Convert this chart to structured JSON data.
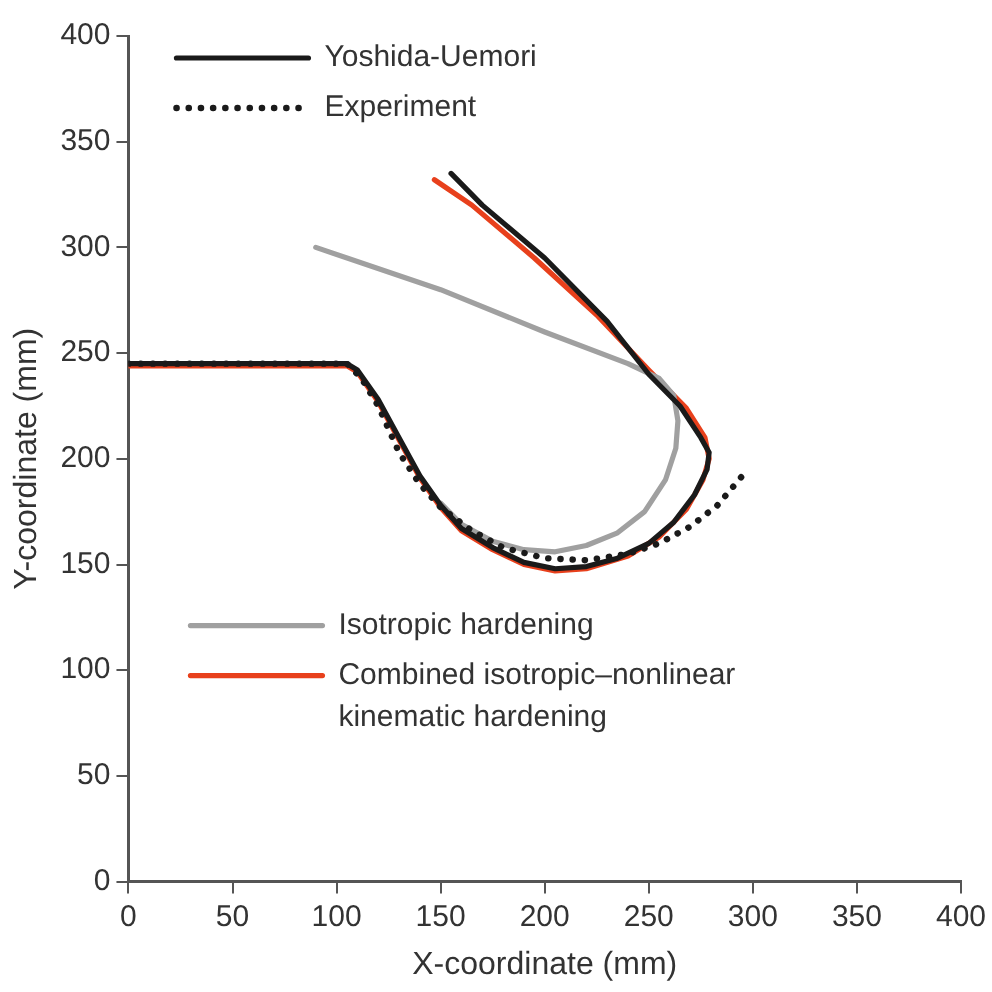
{
  "chart_data": {
    "type": "line",
    "xlabel": "X-coordinate (mm)",
    "ylabel": "Y-coordinate (mm)",
    "xlim": [
      0,
      400
    ],
    "xticks": [
      0,
      50,
      100,
      150,
      200,
      250,
      300,
      350,
      400
    ],
    "ylim": [
      0,
      400
    ],
    "yticks": [
      0,
      50,
      100,
      150,
      200,
      250,
      300,
      350,
      400
    ],
    "grid": false,
    "legend": "top left",
    "marker": "none",
    "series": [
      {
        "name": "Yoshida-Uemori",
        "color": "#1a1a1a",
        "x": [
          0,
          105,
          110,
          120,
          130,
          140,
          150,
          160,
          175,
          190,
          205,
          220,
          235,
          250,
          262,
          272,
          278,
          279,
          275,
          265,
          250,
          230,
          200,
          170,
          155
        ],
        "values": [
          245,
          245,
          242,
          228,
          210,
          192,
          178,
          167,
          158,
          151,
          148,
          149,
          153,
          160,
          170,
          183,
          195,
          203,
          210,
          225,
          240,
          265,
          295,
          320,
          335
        ]
      },
      {
        "name": "Experiment",
        "color": "#1a1a1a",
        "line_style": "dotted",
        "x": [
          0,
          105,
          112,
          120,
          130,
          140,
          150,
          165,
          180,
          200,
          220,
          240,
          255,
          270,
          283,
          295
        ],
        "values": [
          245,
          245,
          238,
          225,
          203,
          188,
          177,
          166,
          158,
          153,
          152,
          155,
          160,
          168,
          178,
          192
        ]
      },
      {
        "name": "Isotropic hardening",
        "color": "#a0a0a0",
        "x": [
          150,
          160,
          175,
          190,
          205,
          220,
          235,
          248,
          258,
          263,
          264,
          262,
          255,
          240,
          200,
          150,
          90
        ],
        "values": [
          179,
          169,
          161,
          157,
          156,
          159,
          165,
          175,
          190,
          205,
          218,
          230,
          238,
          245,
          260,
          280,
          300
        ]
      },
      {
        "name": "Combined isotropic–nonlinear kinematic hardening",
        "color": "#e8401c",
        "x": [
          0,
          105,
          110,
          120,
          130,
          140,
          150,
          160,
          175,
          190,
          205,
          220,
          240,
          255,
          268,
          276,
          279,
          277,
          268,
          250,
          225,
          195,
          165,
          147
        ],
        "values": [
          244,
          244,
          241,
          227,
          209,
          191,
          177,
          166,
          157,
          150,
          147,
          148,
          154,
          163,
          176,
          190,
          200,
          210,
          224,
          242,
          268,
          295,
          320,
          332
        ]
      }
    ]
  }
}
